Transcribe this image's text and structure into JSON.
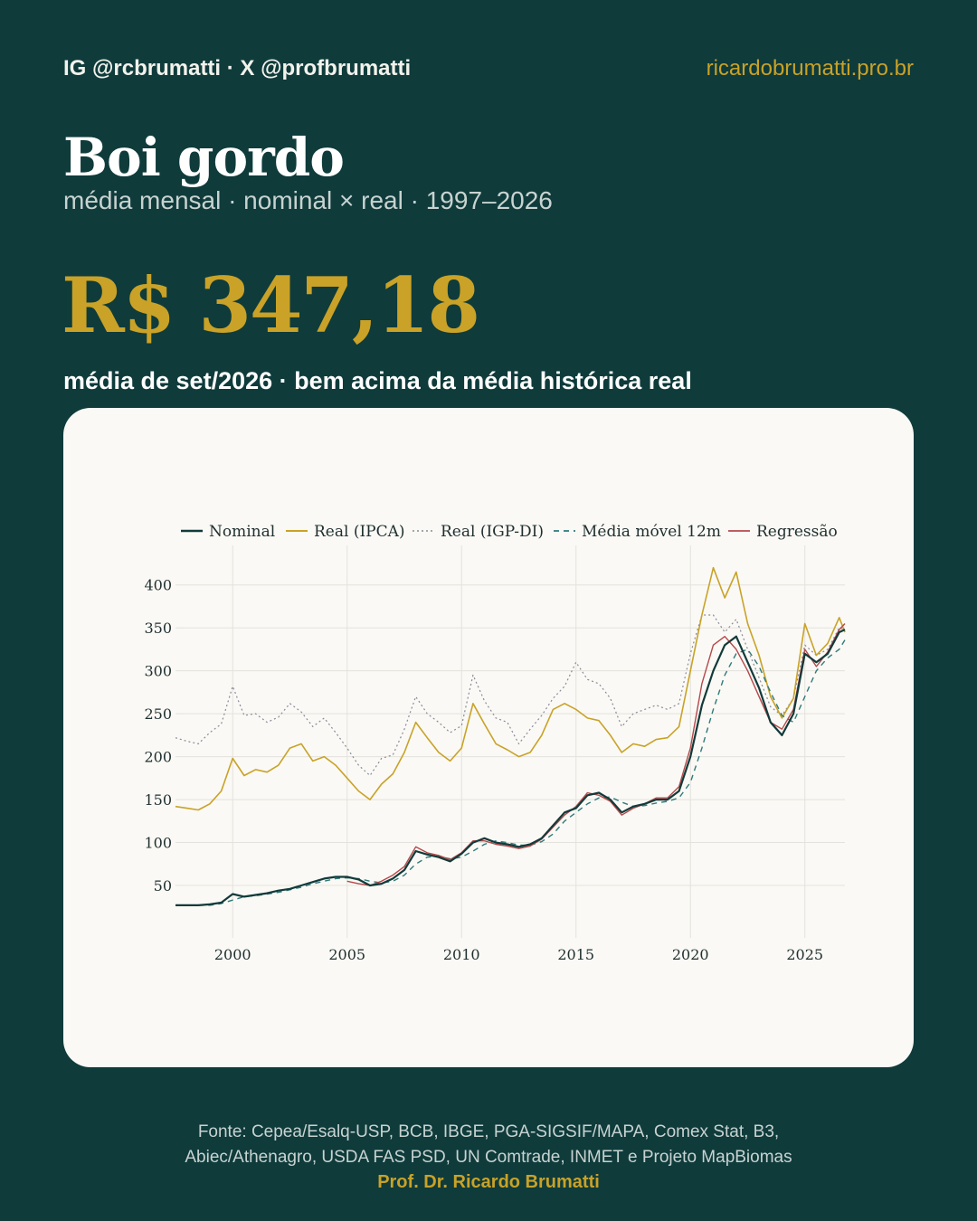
{
  "header": {
    "handles": "IG @rcbrumatti · X @profbrumatti",
    "site": "ricardobrumatti.pro.br"
  },
  "title": "Boi gordo",
  "subtitle": "média mensal · nominal × real · 1997–2026",
  "highlight": {
    "value": "R$ 347,18",
    "caption": "média de set/2026 · bem acima da média histórica real"
  },
  "footer": {
    "source_line1": "Fonte: Cepea/Esalq-USP, BCB, IBGE, PGA-SIGSIF/MAPA, Comex Stat, B3,",
    "source_line2": "Abiec/Athenagro, USDA FAS PSD, UN Comtrade, INMET e Projeto MapBiomas",
    "author": "Prof. Dr. Ricardo Brumatti"
  },
  "colors": {
    "background": "#0f3b3b",
    "accent": "#c9a227",
    "nominal": "#123a3a",
    "real_ipca": "#c9a227",
    "real_igp": "#8a8a9a",
    "mm12": "#2f7a7a",
    "regressao": "#b5484a"
  },
  "chart_data": {
    "type": "line",
    "x_label": "",
    "y_label": "",
    "xlim": [
      1997.5,
      2026.75
    ],
    "ylim": [
      10,
      425
    ],
    "x_ticks": [
      2000,
      2005,
      2010,
      2015,
      2020,
      2025
    ],
    "y_ticks": [
      50,
      100,
      150,
      200,
      250,
      300,
      350,
      400
    ],
    "grid": true,
    "legend_position": "top",
    "x": [
      1997.5,
      1998,
      1998.5,
      1999,
      1999.5,
      2000,
      2000.5,
      2001,
      2001.5,
      2002,
      2002.5,
      2003,
      2003.5,
      2004,
      2004.5,
      2005,
      2005.5,
      2006,
      2006.5,
      2007,
      2007.5,
      2008,
      2008.5,
      2009,
      2009.5,
      2010,
      2010.5,
      2011,
      2011.5,
      2012,
      2012.5,
      2013,
      2013.5,
      2014,
      2014.5,
      2015,
      2015.5,
      2016,
      2016.5,
      2017,
      2017.5,
      2018,
      2018.5,
      2019,
      2019.5,
      2020,
      2020.5,
      2021,
      2021.5,
      2022,
      2022.5,
      2023,
      2023.5,
      2024,
      2024.5,
      2025,
      2025.5,
      2026,
      2026.5,
      2026.75
    ],
    "series": [
      {
        "name": "Nominal",
        "values": [
          27,
          27,
          27,
          28,
          30,
          40,
          37,
          39,
          41,
          44,
          46,
          50,
          54,
          58,
          60,
          60,
          57,
          50,
          52,
          58,
          68,
          90,
          86,
          83,
          78,
          87,
          100,
          105,
          100,
          98,
          95,
          98,
          105,
          120,
          135,
          140,
          155,
          158,
          150,
          135,
          142,
          145,
          150,
          150,
          160,
          200,
          260,
          300,
          330,
          340,
          310,
          280,
          240,
          225,
          250,
          320,
          310,
          320,
          345,
          348
        ]
      },
      {
        "name": "Real (IPCA)",
        "values": [
          142,
          140,
          138,
          145,
          160,
          198,
          178,
          185,
          182,
          190,
          210,
          215,
          195,
          200,
          190,
          175,
          160,
          150,
          168,
          180,
          205,
          240,
          222,
          205,
          195,
          210,
          262,
          238,
          215,
          208,
          200,
          205,
          225,
          255,
          262,
          255,
          245,
          242,
          225,
          205,
          215,
          212,
          220,
          222,
          235,
          300,
          365,
          420,
          385,
          415,
          355,
          318,
          270,
          245,
          268,
          355,
          318,
          332,
          362,
          345
        ]
      },
      {
        "name": "Real (IGP-DI)",
        "values": [
          222,
          218,
          215,
          228,
          238,
          282,
          248,
          250,
          240,
          246,
          262,
          252,
          235,
          245,
          228,
          210,
          190,
          178,
          198,
          202,
          232,
          270,
          250,
          240,
          228,
          236,
          295,
          265,
          245,
          240,
          215,
          232,
          248,
          268,
          282,
          310,
          290,
          285,
          268,
          235,
          250,
          255,
          260,
          255,
          262,
          320,
          365,
          365,
          345,
          360,
          325,
          292,
          258,
          248,
          268,
          330,
          318,
          325,
          350,
          348
        ]
      },
      {
        "name": "Média móvel 12m",
        "values": [
          null,
          null,
          27,
          27,
          29,
          33,
          37,
          38,
          40,
          42,
          45,
          48,
          52,
          55,
          58,
          59,
          58,
          55,
          53,
          55,
          62,
          75,
          83,
          84,
          81,
          83,
          90,
          98,
          102,
          100,
          97,
          97,
          101,
          110,
          125,
          135,
          145,
          152,
          153,
          147,
          142,
          143,
          146,
          148,
          152,
          170,
          210,
          255,
          295,
          320,
          325,
          305,
          275,
          248,
          240,
          270,
          300,
          315,
          325,
          336
        ]
      },
      {
        "name": "Regressão",
        "values": [
          null,
          null,
          null,
          null,
          null,
          null,
          null,
          null,
          null,
          null,
          null,
          null,
          null,
          null,
          null,
          55,
          52,
          50,
          55,
          62,
          72,
          95,
          88,
          85,
          80,
          88,
          102,
          102,
          98,
          96,
          93,
          96,
          104,
          118,
          132,
          142,
          158,
          155,
          148,
          132,
          140,
          145,
          152,
          152,
          165,
          210,
          285,
          330,
          340,
          325,
          300,
          270,
          240,
          232,
          255,
          325,
          305,
          322,
          348,
          355
        ]
      }
    ]
  }
}
